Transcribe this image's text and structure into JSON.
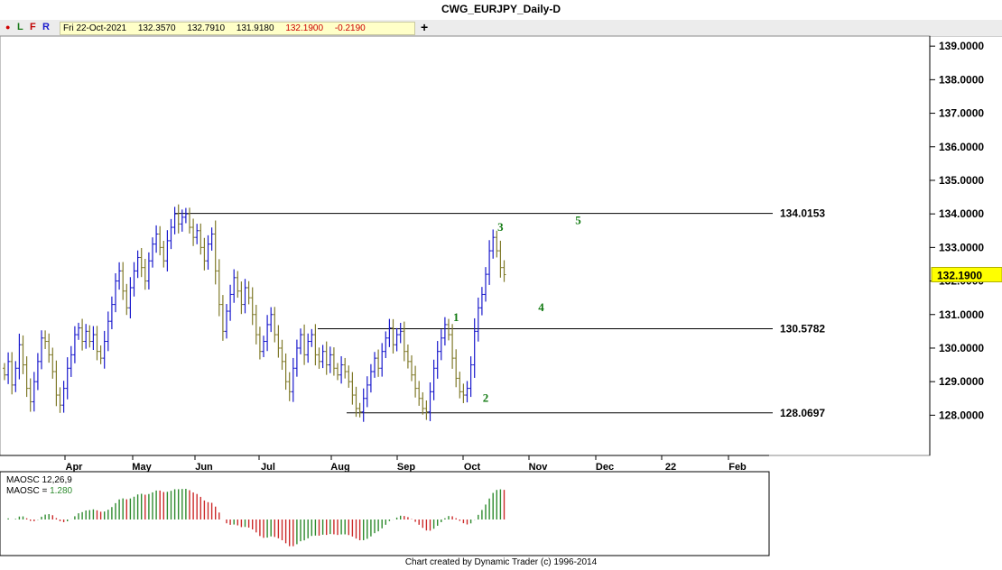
{
  "title": "CWG_EURJPY_Daily-D",
  "toolbar": {
    "dot": "●",
    "L": "L",
    "F": "F",
    "R": "R",
    "plus": "+",
    "info": {
      "date": "Fri 22-Oct-2021",
      "open": "132.3570",
      "high": "132.7910",
      "low": "131.9180",
      "close": "132.1900",
      "change": "-0.2190"
    }
  },
  "colors": {
    "up_bar": "#1a1acc",
    "down_bar": "#807a2a",
    "wave_label": "#127a12",
    "osc_pos": "#2e8b2e",
    "osc_neg": "#cc2a2a",
    "price_tag": "#ffff00"
  },
  "chart_data": [
    {
      "type": "ohlc",
      "y_ticks": [
        "128.0000",
        "129.0000",
        "130.0000",
        "131.0000",
        "132.0000",
        "133.0000",
        "134.0000",
        "135.0000",
        "136.0000",
        "137.0000",
        "138.0000",
        "139.0000"
      ],
      "ylim": [
        126.8,
        139.3
      ],
      "x_ticks": [
        "Apr",
        "May",
        "Jun",
        "Jul",
        "Aug",
        "Sep",
        "Oct",
        "Nov",
        "Dec",
        "22",
        "Feb"
      ],
      "last_price": "132.1900",
      "levels": [
        {
          "value": 134.0153,
          "label": "134.0153"
        },
        {
          "value": 130.5782,
          "label": "130.5782"
        },
        {
          "value": 128.0697,
          "label": "128.0697"
        }
      ],
      "wave_labels": [
        {
          "text": "1",
          "date_index": 122,
          "price": 130.8
        },
        {
          "text": "2",
          "date_index": 130,
          "price": 128.4
        },
        {
          "text": "3",
          "date_index": 134,
          "price": 133.5
        },
        {
          "text": "4",
          "date_index": 145,
          "price": 131.1
        },
        {
          "text": "5",
          "date_index": 155,
          "price": 133.7
        }
      ],
      "closes": [
        129.2,
        129.6,
        128.9,
        129.4,
        130.1,
        129.5,
        128.8,
        128.4,
        129.0,
        129.6,
        130.3,
        130.2,
        129.8,
        129.3,
        128.6,
        128.3,
        128.8,
        129.4,
        129.8,
        130.4,
        130.6,
        130.2,
        130.5,
        130.2,
        130.4,
        129.9,
        129.7,
        130.2,
        130.8,
        131.3,
        132.0,
        132.3,
        131.7,
        131.2,
        131.8,
        132.3,
        132.7,
        132.4,
        132.0,
        132.6,
        133.1,
        133.4,
        133.0,
        132.6,
        133.2,
        133.6,
        134.0,
        133.7,
        133.9,
        134.0,
        133.6,
        133.3,
        133.5,
        133.0,
        132.6,
        133.1,
        133.4,
        132.3,
        131.3,
        130.5,
        131.1,
        131.6,
        132.1,
        131.7,
        131.3,
        131.8,
        131.5,
        131.0,
        130.4,
        129.9,
        130.2,
        130.7,
        131.0,
        130.4,
        130.0,
        129.6,
        129.0,
        128.7,
        129.4,
        130.0,
        130.4,
        129.8,
        130.2,
        130.4,
        129.8,
        129.6,
        129.9,
        129.5,
        129.8,
        129.4,
        129.2,
        129.5,
        129.3,
        129.0,
        128.6,
        128.2,
        128.1,
        128.5,
        128.9,
        129.3,
        129.7,
        129.4,
        129.9,
        130.3,
        130.6,
        130.1,
        130.4,
        130.5,
        129.9,
        129.6,
        129.2,
        128.8,
        128.5,
        128.2,
        128.1,
        128.7,
        129.4,
        129.9,
        130.3,
        130.7,
        130.4,
        129.7,
        129.1,
        128.7,
        128.6,
        128.8,
        129.5,
        130.5,
        131.2,
        131.6,
        132.2,
        132.9,
        133.3,
        132.9,
        132.4,
        132.19
      ],
      "oscillator": {
        "label": "MAOSC 12,26,9",
        "value_label": "MAOSC = ",
        "value": "1.280"
      }
    }
  ],
  "footer": "Chart created by Dynamic Trader  (c) 1996-2014"
}
